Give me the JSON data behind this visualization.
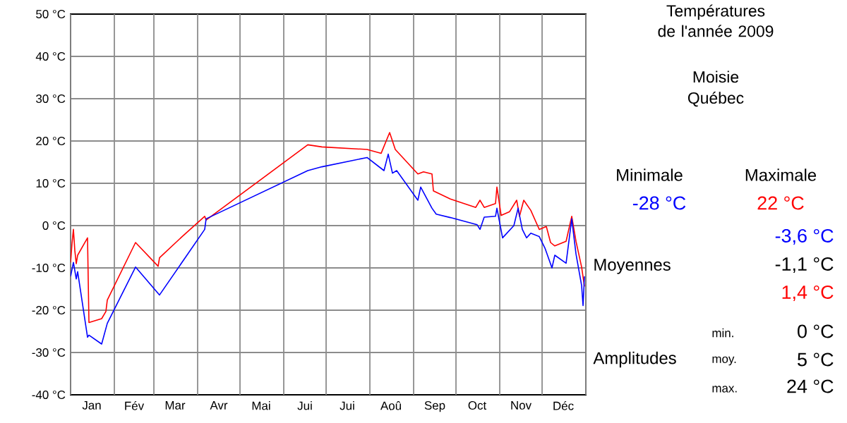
{
  "chart_data": {
    "type": "line",
    "title": "Températures de l'année 2009",
    "subtitle": "Moisie Québec",
    "xlim": [
      "2009-01-01",
      "2010-01-01"
    ],
    "xticks": [
      {
        "value": "2009-01-01",
        "label": null
      },
      {
        "value": "2009-01-16",
        "label": "Jan"
      },
      {
        "value": "2009-02-01",
        "label": null
      },
      {
        "value": "2009-02-15",
        "label": "Fév"
      },
      {
        "value": "2009-03-01",
        "label": null
      },
      {
        "value": "2009-03-16",
        "label": "Mar"
      },
      {
        "value": "2009-04-01",
        "label": null
      },
      {
        "value": "2009-04-16",
        "label": "Avr"
      },
      {
        "value": "2009-05-01",
        "label": null
      },
      {
        "value": "2009-05-16",
        "label": "Mai"
      },
      {
        "value": "2009-06-01",
        "label": null
      },
      {
        "value": "2009-06-16",
        "label": "Jui"
      },
      {
        "value": "2009-07-01",
        "label": null
      },
      {
        "value": "2009-07-16",
        "label": "Jui"
      },
      {
        "value": "2009-08-01",
        "label": null
      },
      {
        "value": "2009-08-16",
        "label": "Aoû"
      },
      {
        "value": "2009-09-01",
        "label": null
      },
      {
        "value": "2009-09-16",
        "label": "Sep"
      },
      {
        "value": "2009-10-01",
        "label": null
      },
      {
        "value": "2009-10-16",
        "label": "Oct"
      },
      {
        "value": "2009-11-01",
        "label": null
      },
      {
        "value": "2009-11-16",
        "label": "Nov"
      },
      {
        "value": "2009-12-01",
        "label": null
      },
      {
        "value": "2009-12-16",
        "label": "Déc"
      },
      {
        "value": "2010-01-01",
        "label": null
      }
    ],
    "ylim": [
      -40,
      50
    ],
    "yticks": [
      {
        "value": -40,
        "label": "-40 °C"
      },
      {
        "value": -30,
        "label": "-30 °C"
      },
      {
        "value": -20,
        "label": "-20 °C"
      },
      {
        "value": -10,
        "label": "-10 °C"
      },
      {
        "value": 0,
        "label": "0 °C"
      },
      {
        "value": 10,
        "label": "10 °C"
      },
      {
        "value": 20,
        "label": "20 °C"
      },
      {
        "value": 30,
        "label": "30 °C"
      },
      {
        "value": 40,
        "label": "40 °C"
      },
      {
        "value": 50,
        "label": "50 °C"
      }
    ],
    "grid": true,
    "marker": "none",
    "line_style": "solid",
    "series": [
      {
        "color": "#ff0000",
        "x": [
          "2009-01-01",
          "2009-01-02",
          "2009-01-03",
          "2009-01-04",
          "2009-01-05",
          "2009-01-06",
          "2009-01-13",
          "2009-01-14",
          "2009-01-23",
          "2009-01-26",
          "2009-01-27",
          "2009-02-16",
          "2009-03-04",
          "2009-03-05",
          "2009-03-21",
          "2009-04-06",
          "2009-04-07",
          "2009-06-18",
          "2009-06-28",
          "2009-07-30",
          "2009-08-09",
          "2009-08-15",
          "2009-08-19",
          "2009-09-04",
          "2009-09-08",
          "2009-09-14",
          "2009-09-15",
          "2009-09-27",
          "2009-10-15",
          "2009-10-18",
          "2009-10-21",
          "2009-10-29",
          "2009-10-30",
          "2009-11-02",
          "2009-11-08",
          "2009-11-13",
          "2009-11-15",
          "2009-11-18",
          "2009-11-23",
          "2009-11-29",
          "2009-12-04",
          "2009-12-07",
          "2009-12-10",
          "2009-12-18",
          "2009-12-22",
          "2009-12-25",
          "2009-12-29",
          "2009-12-31"
        ],
        "values": [
          -8.7,
          -4.2,
          -0.9,
          -5.9,
          -9,
          -7,
          -2.9,
          -22.9,
          -22,
          -20.3,
          -17.6,
          -4,
          -9.6,
          -7.6,
          -2.6,
          2.2,
          1.3,
          19.1,
          18.6,
          18,
          17.1,
          22,
          18,
          12.2,
          12.7,
          12.2,
          8.2,
          6.3,
          4.3,
          6,
          4.3,
          5.2,
          9.1,
          2.4,
          3.3,
          6,
          2.2,
          6,
          3.6,
          -0.9,
          -0.2,
          -4,
          -4.8,
          -3.7,
          2.2,
          -3.7,
          -9.8,
          -14.4
        ]
      },
      {
        "color": "#0000ff",
        "x": [
          "2009-01-01",
          "2009-01-03",
          "2009-01-05",
          "2009-01-06",
          "2009-01-13",
          "2009-01-14",
          "2009-01-23",
          "2009-01-27",
          "2009-02-16",
          "2009-03-05",
          "2009-04-06",
          "2009-04-07",
          "2009-06-18",
          "2009-06-28",
          "2009-07-30",
          "2009-08-11",
          "2009-08-14",
          "2009-08-17",
          "2009-08-20",
          "2009-09-04",
          "2009-09-06",
          "2009-09-14",
          "2009-09-17",
          "2009-09-27",
          "2009-10-16",
          "2009-10-18",
          "2009-10-21",
          "2009-10-29",
          "2009-10-30",
          "2009-11-03",
          "2009-11-11",
          "2009-11-14",
          "2009-11-17",
          "2009-11-20",
          "2009-11-23",
          "2009-11-29",
          "2009-12-03",
          "2009-12-08",
          "2009-12-10",
          "2009-12-18",
          "2009-12-22",
          "2009-12-25",
          "2009-12-29",
          "2009-12-30",
          "2009-12-31"
        ],
        "values": [
          -12,
          -8.7,
          -12.6,
          -10.9,
          -26.4,
          -25.9,
          -28,
          -23.1,
          -9.8,
          -16.4,
          -0.9,
          1.6,
          13,
          13.9,
          16.1,
          13,
          16.9,
          12.4,
          13,
          6,
          9.1,
          4.1,
          2.7,
          1.9,
          0.2,
          -0.9,
          2,
          2.2,
          4.1,
          -2.9,
          0,
          4.1,
          -0.9,
          -2.9,
          -1.8,
          -2.6,
          -5.3,
          -10,
          -7,
          -8.9,
          1.6,
          -6.7,
          -14.2,
          -18.9,
          -12
        ]
      }
    ],
    "annotations": [
      "Minimale",
      "Maximale",
      "-28 °C",
      "22 °C",
      "Moyennes",
      "-3,6 °C",
      "-1,1 °C",
      "1,4 °C",
      "Amplitudes",
      "min.",
      "0 °C",
      "moy.",
      "5 °C",
      "max.",
      "24 °C"
    ]
  }
}
